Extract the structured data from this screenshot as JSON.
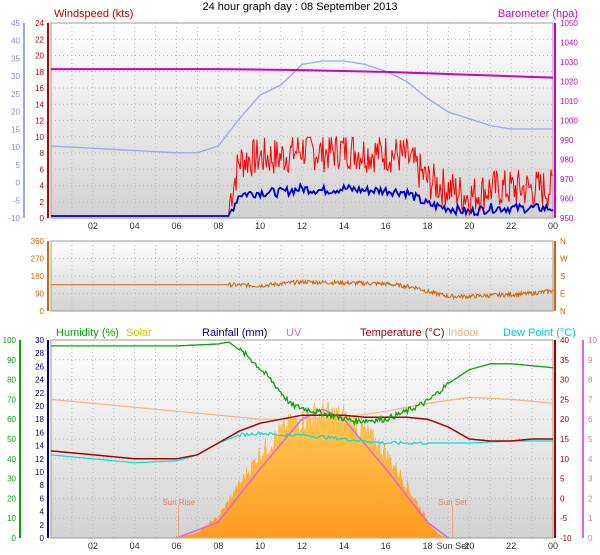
{
  "title": "24 hour graph day : 08 September 2013",
  "colors": {
    "wind": "#c00000",
    "wind_fill": "#ff0000",
    "wind_avg": "#0000cc",
    "baro": "#cc00cc",
    "baro_left": "#9aa8e8",
    "dir": "#cc6600",
    "humidity": "#00aa00",
    "solar_label": "#cccc00",
    "solar_fill": "#ffb133",
    "rain": "#000080",
    "uv": "#dd66dd",
    "temp": "#aa0000",
    "indoor": "#ffb080",
    "dew": "#00dddd"
  },
  "panel1": {
    "labels": {
      "left": "Windspeed (kts)",
      "right": "Barometer (hpa)"
    },
    "left_ticks_wind": [
      "24",
      "22",
      "20",
      "18",
      "16",
      "14",
      "12",
      "10",
      "8",
      "6",
      "4",
      "2",
      "0"
    ],
    "left_ticks_outer": [
      "45",
      "40",
      "35",
      "30",
      "25",
      "20",
      "15",
      "10",
      "5",
      "0",
      "-5",
      "-10"
    ],
    "right_ticks": [
      "1050",
      "1040",
      "1030",
      "1020",
      "1010",
      "1000",
      "990",
      "980",
      "970",
      "960",
      "950"
    ],
    "x_ticks": [
      "02",
      "04",
      "06",
      "08",
      "10",
      "12",
      "14",
      "16",
      "18",
      "20",
      "22",
      "00"
    ]
  },
  "panel2": {
    "left_ticks": [
      "360",
      "270",
      "180",
      "90",
      "0"
    ],
    "right_ticks": [
      "N",
      "W",
      "S",
      "E",
      "N"
    ]
  },
  "panel3": {
    "legend": {
      "humidity": "Humidity (%)",
      "solar": "Solar",
      "rain": "Rainfall (mm)",
      "uv": "UV",
      "temp": "Temperature (°C)",
      "indoor": "Indoor",
      "dew": "Dew Point (°C)"
    },
    "left_outer_ticks": [
      "100",
      "90",
      "80",
      "70",
      "60",
      "50",
      "40",
      "30",
      "20",
      "10",
      "0"
    ],
    "left_inner_ticks": [
      "30",
      "28",
      "26",
      "24",
      "22",
      "20",
      "18",
      "16",
      "14",
      "12",
      "10",
      "8",
      "6",
      "4",
      "2",
      "0"
    ],
    "right_temp_ticks": [
      "40",
      "35",
      "30",
      "25",
      "20",
      "15",
      "10",
      "5",
      "0",
      "-5",
      "-10"
    ],
    "right_uv_ticks": [
      "10",
      "9",
      "8",
      "7",
      "6",
      "5",
      "4",
      "3",
      "2",
      "1",
      "0"
    ],
    "annotations": {
      "sunrise": "Sun Rise",
      "sunset": "Sun Set"
    },
    "x_ticks": [
      "02",
      "04",
      "06",
      "08",
      "10",
      "12",
      "14",
      "16",
      "18",
      "Sun Set",
      "20",
      "22",
      "00"
    ]
  },
  "chart_data": [
    {
      "type": "line",
      "title": "24 hour graph day : 08 September 2013",
      "x_unit": "hour",
      "series": [
        {
          "name": "Windspeed (kts)",
          "axis": "left",
          "x": [
            0,
            8,
            8.5,
            9,
            10,
            11,
            12,
            13,
            14,
            15,
            16,
            17,
            18,
            19,
            20,
            21,
            22,
            23,
            24
          ],
          "y": [
            0,
            0,
            0,
            5.5,
            6,
            6,
            7,
            6.5,
            7,
            6.5,
            6.5,
            6,
            3,
            2,
            1,
            2,
            2,
            2,
            2
          ]
        },
        {
          "name": "Barometer (hpa)",
          "axis": "right",
          "x": [
            0,
            4,
            8,
            12,
            16,
            20,
            24
          ],
          "y": [
            1028,
            1028,
            1028,
            1027.5,
            1026.5,
            1025,
            1023.5
          ]
        }
      ]
    },
    {
      "type": "line",
      "x_unit": "hour",
      "series": [
        {
          "name": "Wind direction",
          "x": [
            0,
            8,
            8.5,
            10,
            12,
            14,
            16,
            17.5,
            18,
            19,
            20,
            22,
            23,
            24
          ],
          "y": [
            135,
            135,
            135,
            130,
            150,
            145,
            140,
            120,
            100,
            75,
            75,
            85,
            90,
            105
          ]
        }
      ]
    },
    {
      "type": "line",
      "x_unit": "hour",
      "series": [
        {
          "name": "Humidity (%)",
          "x": [
            0,
            6,
            8,
            8.5,
            9.5,
            10.5,
            11.5,
            13,
            14.5,
            16,
            17,
            18,
            19,
            20,
            21,
            22,
            23,
            24
          ],
          "y": [
            97,
            97,
            98,
            99,
            91,
            80,
            67,
            63,
            59,
            60,
            64,
            69,
            78,
            85,
            88,
            88,
            87,
            86
          ]
        },
        {
          "name": "Temperature (°C)",
          "x": [
            0,
            2,
            4,
            6,
            7,
            8,
            9,
            10,
            11,
            12,
            13,
            14,
            15,
            16,
            17,
            18,
            19,
            20,
            21,
            22,
            23,
            24
          ],
          "y": [
            12,
            11,
            10,
            10,
            11,
            14,
            17,
            19,
            20,
            21,
            21,
            21,
            20.5,
            20.5,
            20.5,
            20,
            18,
            15,
            14.5,
            14.5,
            15,
            15
          ]
        },
        {
          "name": "Dew Point (°C)",
          "x": [
            0,
            2,
            4,
            6,
            7,
            8,
            9,
            10,
            11,
            12,
            13,
            14,
            15,
            16,
            18,
            20,
            22,
            24
          ],
          "y": [
            11,
            10,
            9,
            9.5,
            11,
            14,
            16,
            16.5,
            16,
            16,
            15.5,
            15,
            14.5,
            14,
            14,
            14,
            14.5,
            14.5
          ]
        },
        {
          "name": "Indoor",
          "x": [
            0,
            4,
            8,
            10,
            12,
            14,
            16,
            18,
            20,
            22,
            24
          ],
          "y": [
            25,
            23,
            21,
            20,
            20,
            20.5,
            22,
            24,
            25.5,
            25,
            24
          ]
        },
        {
          "name": "Solar",
          "x": [
            6,
            7,
            8,
            9,
            10,
            11,
            12,
            13,
            14,
            15,
            16,
            17,
            18,
            18.5,
            19
          ],
          "y": [
            0,
            30,
            120,
            300,
            480,
            600,
            680,
            700,
            680,
            600,
            480,
            300,
            100,
            20,
            0
          ]
        },
        {
          "name": "UV",
          "x": [
            6,
            8,
            10,
            12,
            13,
            14,
            16,
            18,
            19
          ],
          "y": [
            0,
            0.8,
            3.5,
            6,
            6.5,
            6,
            3.5,
            0.8,
            0
          ]
        }
      ]
    }
  ]
}
